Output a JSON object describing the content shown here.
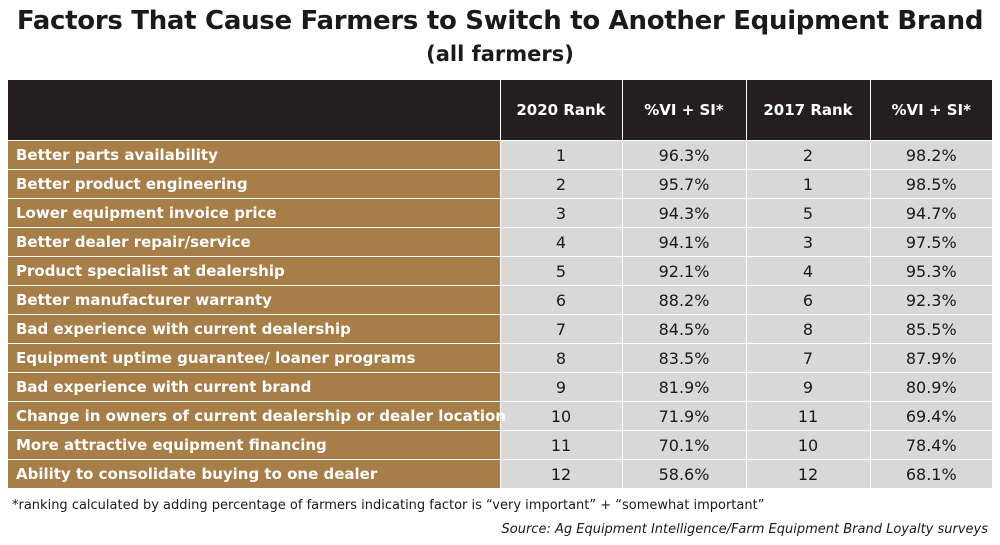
{
  "chart_data": {
    "type": "table",
    "title": "Factors That Cause Farmers to Switch to Another Equipment Brand",
    "subtitle": "(all farmers)",
    "columns": [
      "",
      "2020 Rank",
      "%VI + SI*",
      "2017 Rank",
      "%VI + SI*"
    ],
    "rows": [
      {
        "factor": "Better parts availability",
        "rank_2020": 1,
        "pct_2020": "96.3%",
        "rank_2017": 2,
        "pct_2017": "98.2%"
      },
      {
        "factor": "Better product engineering",
        "rank_2020": 2,
        "pct_2020": "95.7%",
        "rank_2017": 1,
        "pct_2017": "98.5%"
      },
      {
        "factor": "Lower equipment invoice price",
        "rank_2020": 3,
        "pct_2020": "94.3%",
        "rank_2017": 5,
        "pct_2017": "94.7%"
      },
      {
        "factor": "Better dealer repair/service",
        "rank_2020": 4,
        "pct_2020": "94.1%",
        "rank_2017": 3,
        "pct_2017": "97.5%"
      },
      {
        "factor": "Product specialist at dealership",
        "rank_2020": 5,
        "pct_2020": "92.1%",
        "rank_2017": 4,
        "pct_2017": "95.3%"
      },
      {
        "factor": "Better manufacturer warranty",
        "rank_2020": 6,
        "pct_2020": "88.2%",
        "rank_2017": 6,
        "pct_2017": "92.3%"
      },
      {
        "factor": "Bad experience with current dealership",
        "rank_2020": 7,
        "pct_2020": "84.5%",
        "rank_2017": 8,
        "pct_2017": "85.5%"
      },
      {
        "factor": "Equipment uptime guarantee/ loaner programs",
        "rank_2020": 8,
        "pct_2020": "83.5%",
        "rank_2017": 7,
        "pct_2017": "87.9%"
      },
      {
        "factor": "Bad experience with current brand",
        "rank_2020": 9,
        "pct_2020": "81.9%",
        "rank_2017": 9,
        "pct_2017": "80.9%"
      },
      {
        "factor": "Change in owners of current dealership or dealer location",
        "rank_2020": 10,
        "pct_2020": "71.9%",
        "rank_2017": 11,
        "pct_2017": "69.4%"
      },
      {
        "factor": "More attractive equipment financing",
        "rank_2020": 11,
        "pct_2020": "70.1%",
        "rank_2017": 10,
        "pct_2017": "78.4%"
      },
      {
        "factor": "Ability to consolidate buying to one dealer",
        "rank_2020": 12,
        "pct_2020": "58.6%",
        "rank_2017": 12,
        "pct_2017": "68.1%"
      }
    ],
    "footnote": "*ranking calculated by adding percentage of farmers indicating factor is “very important” + “somewhat important”",
    "source": "Source: Ag Equipment Intelligence/Farm Equipment Brand Loyalty surveys"
  },
  "colors": {
    "header_bg": "#231f20",
    "label_bg": "#a77d48",
    "value_bg": "#d8d8d8"
  }
}
